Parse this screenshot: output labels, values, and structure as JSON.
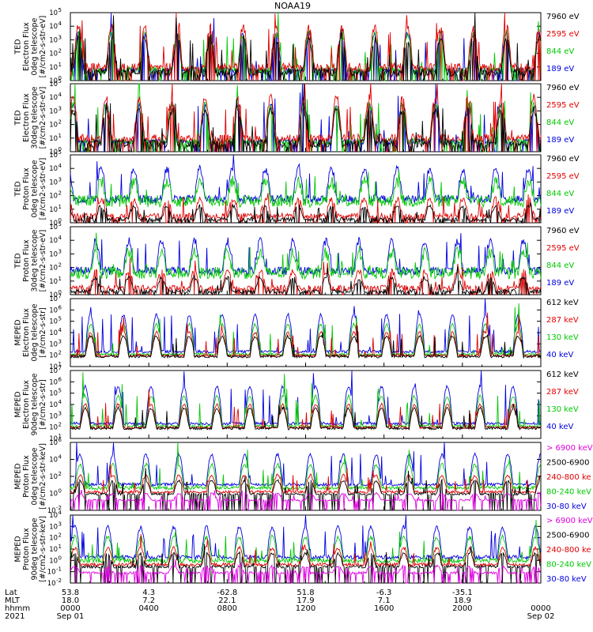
{
  "chart_data": {
    "type": "line",
    "title": "NOAA19",
    "x_axis": {
      "tick_times": [
        "0000",
        "0400",
        "0800",
        "1200",
        "1600",
        "2000",
        "0000"
      ],
      "tick_dates": [
        "Sep 01",
        "",
        "",
        "",
        "",
        "",
        "Sep 02"
      ],
      "rows": [
        {
          "label": "Lat",
          "values": [
            "53.8",
            "4.3",
            "-62.8",
            "51.8",
            "-6.3",
            "-35.1",
            ""
          ]
        },
        {
          "label": "MLT",
          "values": [
            "18.0",
            "7.2",
            "22.1",
            "17.9",
            "7.1",
            "18.9",
            ""
          ]
        },
        {
          "label": "hhmm",
          "values": [
            "0000",
            "0400",
            "0800",
            "1200",
            "1600",
            "2000",
            "0000"
          ]
        },
        {
          "label": "2021",
          "values": [
            "Sep 01",
            "",
            "",
            "",
            "",
            "",
            "Sep 02"
          ]
        }
      ],
      "range_hours": [
        0,
        24
      ]
    },
    "panels": [
      {
        "ylabel": [
          "TED",
          "Electron Flux",
          "0deg telescope",
          "[#/cm2-s-str-eV]"
        ],
        "scale": "log",
        "ylim_exp": [
          0,
          5
        ],
        "tick_exps": [
          0,
          1,
          2,
          3,
          4,
          5
        ],
        "legend": [
          {
            "text": "7960 eV",
            "color": "#000000"
          },
          {
            "text": "2595 eV",
            "color": "#e00000"
          },
          {
            "text": "844 eV",
            "color": "#00c800"
          },
          {
            "text": "189 eV",
            "color": "#0000e0"
          }
        ]
      },
      {
        "ylabel": [
          "TED",
          "Electron Flux",
          "30deg telescope",
          "[#/cm2-s-str-eV]"
        ],
        "scale": "log",
        "ylim_exp": [
          0,
          5
        ],
        "tick_exps": [
          0,
          1,
          2,
          3,
          4,
          5
        ],
        "legend": [
          {
            "text": "7960 eV",
            "color": "#000000"
          },
          {
            "text": "2595 eV",
            "color": "#e00000"
          },
          {
            "text": "844 eV",
            "color": "#00c800"
          },
          {
            "text": "189 eV",
            "color": "#0000e0"
          }
        ]
      },
      {
        "ylabel": [
          "TED",
          "Proton Flux",
          "0deg telescope",
          "[#/cm2-s-str-eV]"
        ],
        "scale": "log",
        "ylim_exp": [
          0,
          5
        ],
        "tick_exps": [
          0,
          1,
          2,
          3,
          4,
          5
        ],
        "legend": [
          {
            "text": "7960 eV",
            "color": "#000000"
          },
          {
            "text": "2595 eV",
            "color": "#e00000"
          },
          {
            "text": "844 eV",
            "color": "#00c800"
          },
          {
            "text": "189 eV",
            "color": "#0000e0"
          }
        ]
      },
      {
        "ylabel": [
          "TED",
          "Proton Flux",
          "30deg telescope",
          "[#/cm2-s-str-eV]"
        ],
        "scale": "log",
        "ylim_exp": [
          0,
          5
        ],
        "tick_exps": [
          0,
          1,
          2,
          3,
          4,
          5
        ],
        "legend": [
          {
            "text": "7960 eV",
            "color": "#000000"
          },
          {
            "text": "2595 eV",
            "color": "#e00000"
          },
          {
            "text": "844 eV",
            "color": "#00c800"
          },
          {
            "text": "189 eV",
            "color": "#0000e0"
          }
        ]
      },
      {
        "ylabel": [
          "MEPED",
          "Electron Flux",
          "0deg telescope",
          "[#/cm2-s-str]"
        ],
        "scale": "log",
        "ylim_exp": [
          1,
          7
        ],
        "tick_exps": [
          1,
          2,
          3,
          4,
          5,
          6,
          7
        ],
        "legend": [
          {
            "text": "612 keV",
            "color": "#000000"
          },
          {
            "text": "287 keV",
            "color": "#e00000"
          },
          {
            "text": "130 keV",
            "color": "#00c800"
          },
          {
            "text": "40 keV",
            "color": "#0000e0"
          }
        ]
      },
      {
        "ylabel": [
          "MEPED",
          "Electron Flux",
          "90deg telescope",
          "[#/cm2-s-str]"
        ],
        "scale": "log",
        "ylim_exp": [
          1,
          7
        ],
        "tick_exps": [
          1,
          2,
          3,
          4,
          5,
          6,
          7
        ],
        "legend": [
          {
            "text": "612 keV",
            "color": "#000000"
          },
          {
            "text": "287 keV",
            "color": "#e00000"
          },
          {
            "text": "130 keV",
            "color": "#00c800"
          },
          {
            "text": "40 keV",
            "color": "#0000e0"
          }
        ]
      },
      {
        "ylabel": [
          "MEPED",
          "Proton Flux",
          "0deg telescope",
          "[#/cm2-s-str-keV]"
        ],
        "scale": "log",
        "ylim_exp": [
          -2,
          6
        ],
        "tick_exps": [
          -2,
          0,
          2,
          4,
          6
        ],
        "legend": [
          {
            "text": "> 6900 keV",
            "color": "#e000e0"
          },
          {
            "text": "2500-6900",
            "color": "#000000"
          },
          {
            "text": "240-800 ke",
            "color": "#e00000"
          },
          {
            "text": "80-240 keV",
            "color": "#00c800"
          },
          {
            "text": "30-80 keV",
            "color": "#0000e0"
          }
        ]
      },
      {
        "ylabel": [
          "MEPED",
          "Proton Flux",
          "90deg telescope",
          "[#/cm2-s-str-keV]"
        ],
        "scale": "log",
        "ylim_exp": [
          -2,
          4
        ],
        "tick_exps": [
          -2,
          -1,
          0,
          1,
          2,
          3,
          4
        ],
        "legend": [
          {
            "text": "> 6900 keV",
            "color": "#e000e0"
          },
          {
            "text": "2500-6900",
            "color": "#000000"
          },
          {
            "text": "240-800 ke",
            "color": "#e00000"
          },
          {
            "text": "80-240 keV",
            "color": "#00c800"
          },
          {
            "text": "30-80 keV",
            "color": "#0000e0"
          }
        ]
      }
    ]
  }
}
